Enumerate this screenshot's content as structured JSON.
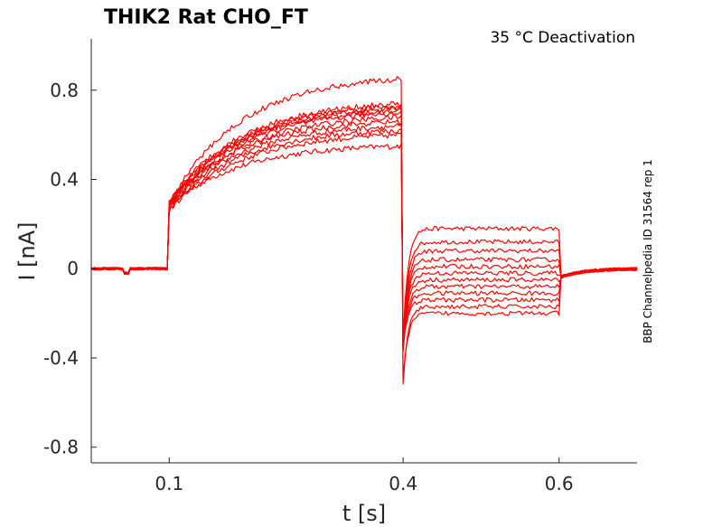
{
  "chart_data": {
    "type": "line",
    "title": "THIK2  Rat  CHO_FT",
    "condition": "35 °C  Deactivation",
    "side_label": "BBP Channelpedia ID 31564 rep 1",
    "xlabel": "t [s]",
    "ylabel": "I [nA]",
    "xlim": [
      0.0,
      0.7
    ],
    "ylim": [
      -0.87,
      1.03
    ],
    "xticks": [
      0.1,
      0.4,
      0.6
    ],
    "xtick_labels": [
      "0.1",
      "0.4",
      "0.6"
    ],
    "yticks": [
      0.8,
      0.4,
      0,
      -0.4,
      -0.8
    ],
    "ytick_labels": [
      "0.8",
      "0.4",
      "0",
      "-0.4",
      "-0.8"
    ],
    "grid": false,
    "trace_color": "#ff0000",
    "protocol_times_s": [
      0.1,
      0.4,
      0.6
    ],
    "series": [
      {
        "jump": 0.28,
        "pre_end": 0.55,
        "post_step": 0.18
      },
      {
        "jump": 0.26,
        "pre_end": 0.6,
        "post_step": 0.12
      },
      {
        "jump": 0.27,
        "pre_end": 0.62,
        "post_step": 0.08
      },
      {
        "jump": 0.28,
        "pre_end": 0.64,
        "post_step": 0.04
      },
      {
        "jump": 0.29,
        "pre_end": 0.66,
        "post_step": 0.01
      },
      {
        "jump": 0.27,
        "pre_end": 0.68,
        "post_step": -0.02
      },
      {
        "jump": 0.28,
        "pre_end": 0.7,
        "post_step": -0.05
      },
      {
        "jump": 0.3,
        "pre_end": 0.71,
        "post_step": -0.08
      },
      {
        "jump": 0.28,
        "pre_end": 0.72,
        "post_step": -0.11
      },
      {
        "jump": 0.29,
        "pre_end": 0.73,
        "post_step": -0.14
      },
      {
        "jump": 0.3,
        "pre_end": 0.74,
        "post_step": -0.17
      },
      {
        "jump": 0.29,
        "pre_end": 0.85,
        "post_step": -0.2
      }
    ]
  }
}
